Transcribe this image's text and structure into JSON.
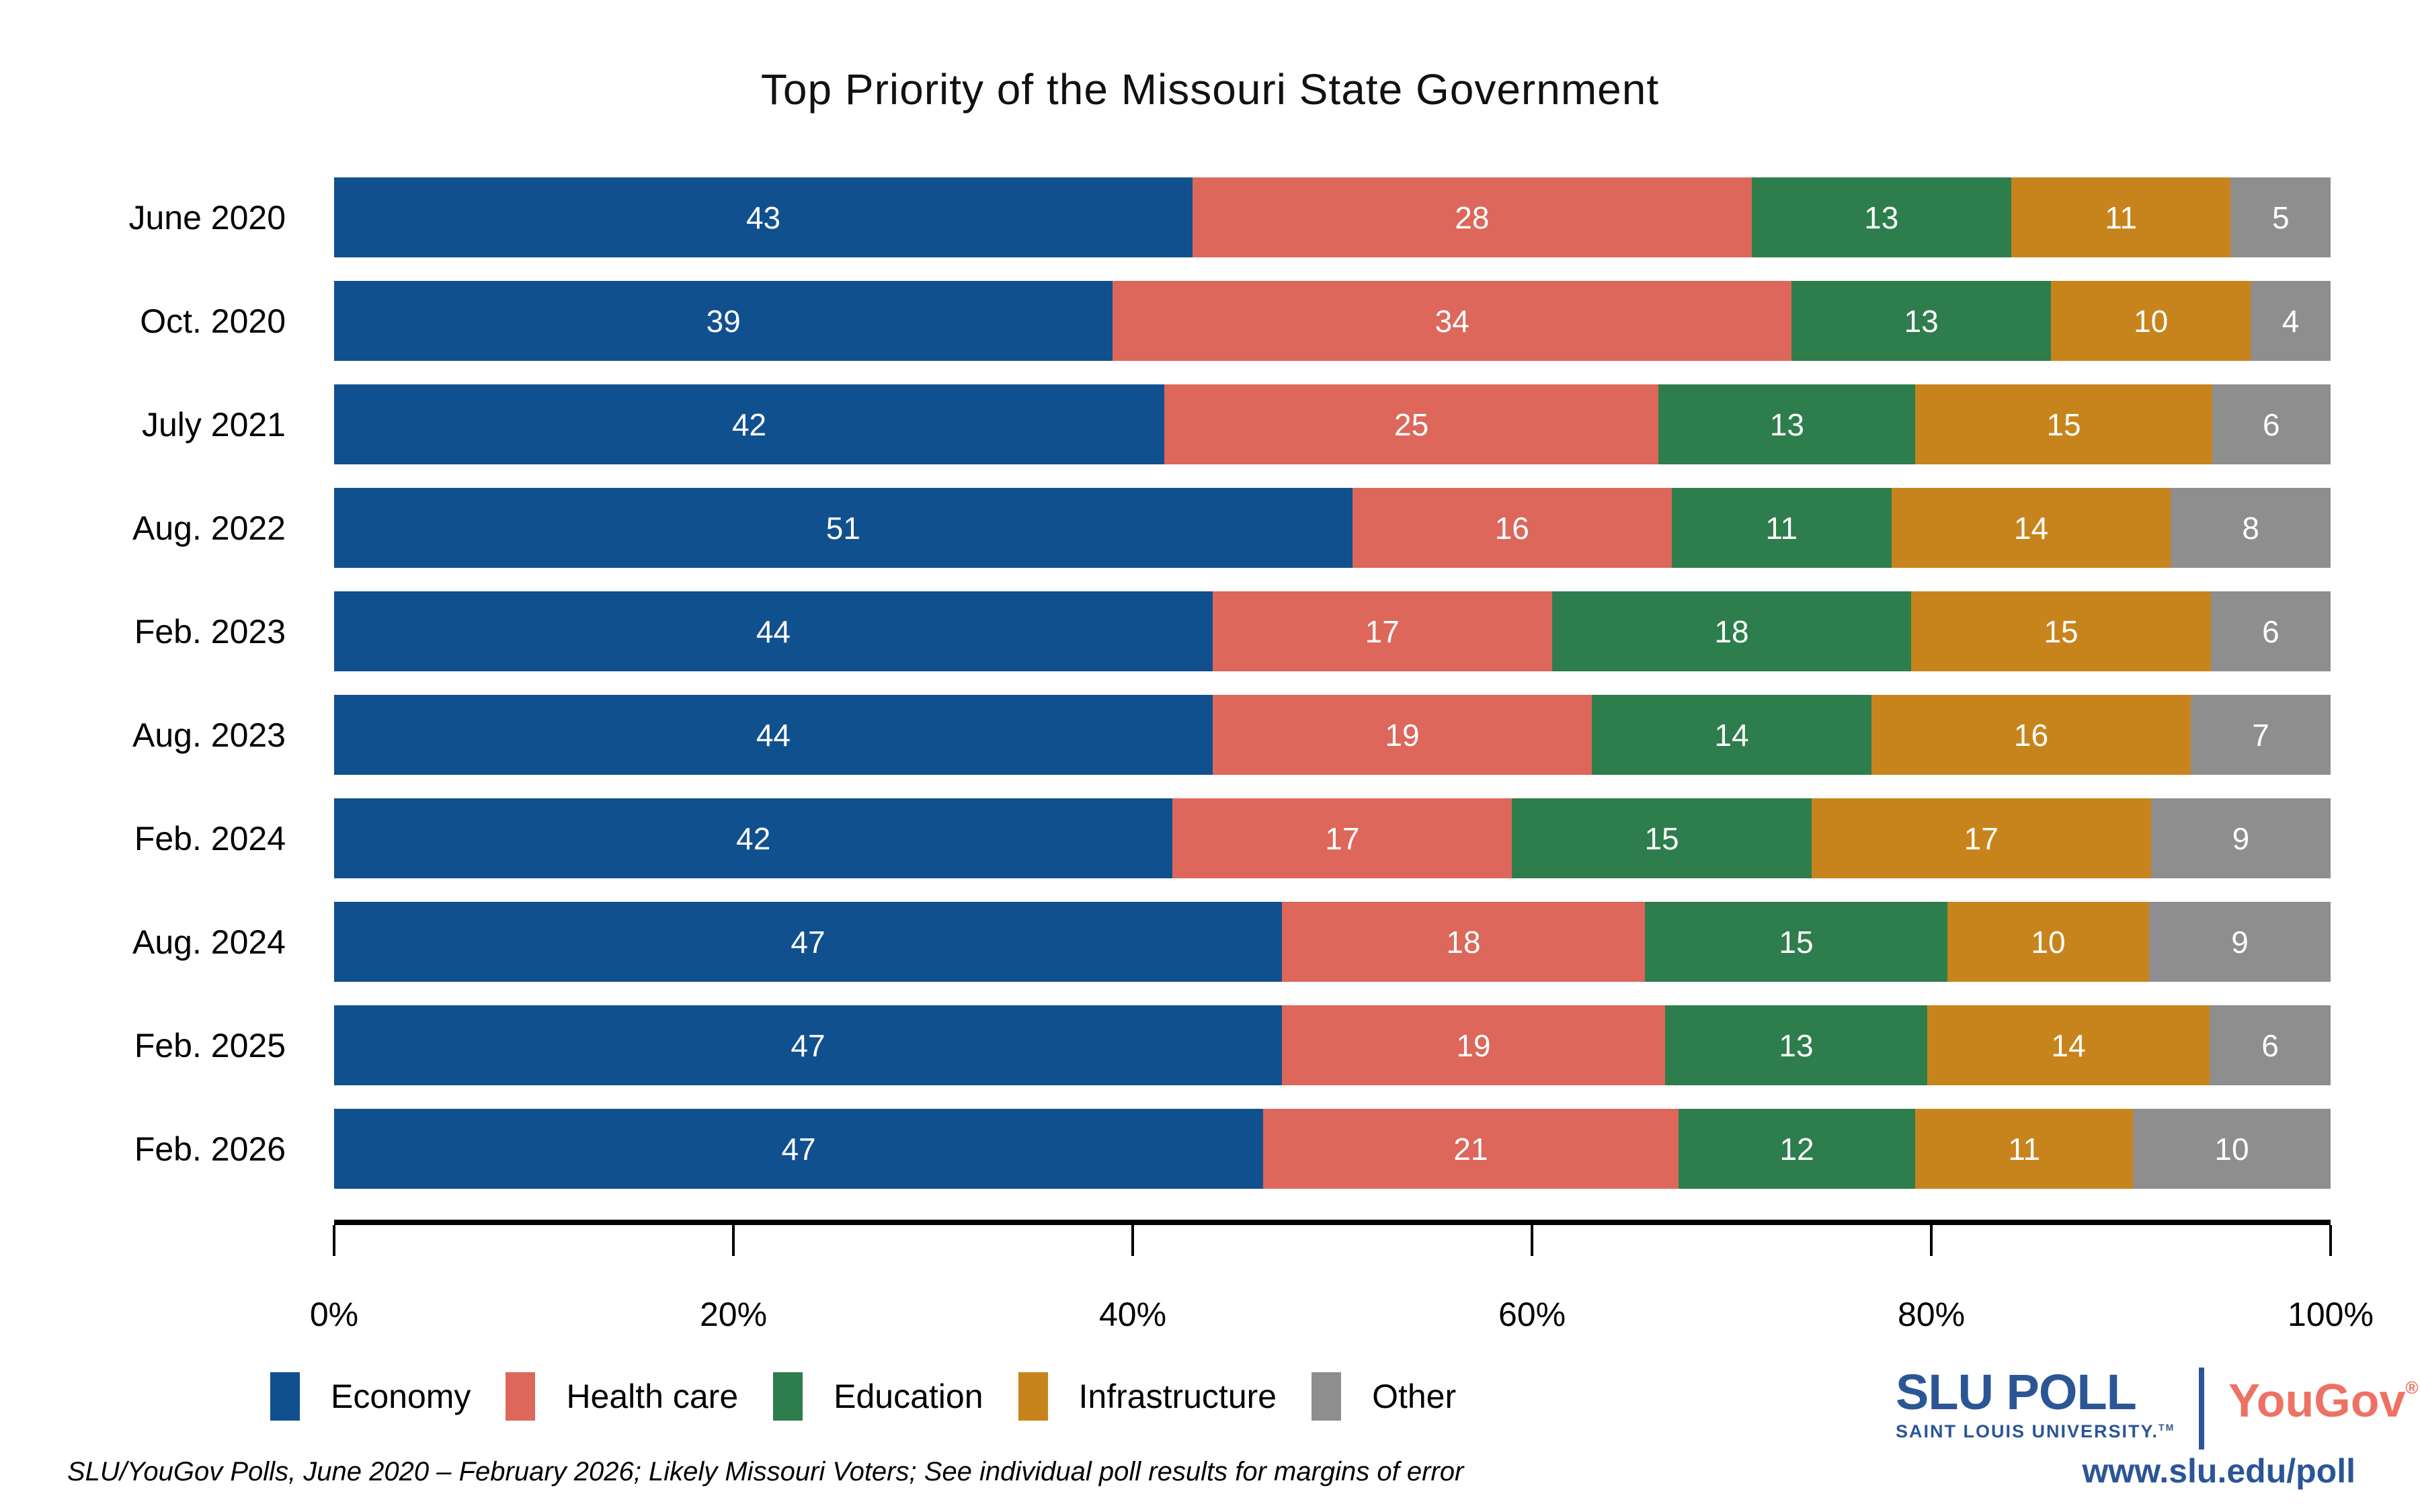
{
  "title": "Top Priority of the Missouri State Government",
  "chart_data": {
    "type": "bar",
    "stacked": true,
    "orientation": "horizontal",
    "title": "Top Priority of the Missouri State Government",
    "categories": [
      "June 2020",
      "Oct. 2020",
      "July 2021",
      "Aug. 2022",
      "Feb. 2023",
      "Aug. 2023",
      "Feb. 2024",
      "Aug. 2024",
      "Feb. 2025",
      "Feb. 2026"
    ],
    "series": [
      {
        "name": "Economy",
        "color": "#11508F",
        "values": [
          43,
          39,
          42,
          51,
          44,
          44,
          42,
          47,
          47,
          47
        ]
      },
      {
        "name": "Health care",
        "color": "#DC675A",
        "values": [
          28,
          34,
          25,
          16,
          17,
          19,
          17,
          18,
          19,
          21
        ]
      },
      {
        "name": "Education",
        "color": "#2E7D4C",
        "values": [
          13,
          13,
          13,
          11,
          18,
          14,
          15,
          15,
          13,
          12
        ]
      },
      {
        "name": "Infrastructure",
        "color": "#C8841C",
        "values": [
          11,
          10,
          15,
          14,
          15,
          16,
          17,
          10,
          14,
          11
        ]
      },
      {
        "name": "Other",
        "color": "#8E8E8E",
        "values": [
          5,
          4,
          6,
          8,
          6,
          7,
          9,
          9,
          6,
          10
        ]
      }
    ],
    "x_tick_labels": [
      "0%",
      "20%",
      "40%",
      "60%",
      "80%",
      "100%"
    ],
    "xlim": [
      0,
      100
    ],
    "value_label_color": "#ffffff",
    "grid": false,
    "legend_position": "bottom"
  },
  "footer": {
    "source_note": "SLU/YouGov Polls, June 2020 – February 2026; Likely Missouri Voters; See individual poll results for margins of error"
  },
  "branding": {
    "slu_poll": "SLU POLL",
    "slu_subtitle": "SAINT LOUIS UNIVERSITY.",
    "slu_trademark": "TM",
    "yougov": "YouGov",
    "yougov_registered": "®",
    "url": "www.slu.edu/poll",
    "slu_blue": "#2B5696",
    "yougov_red": "#EE7264"
  }
}
